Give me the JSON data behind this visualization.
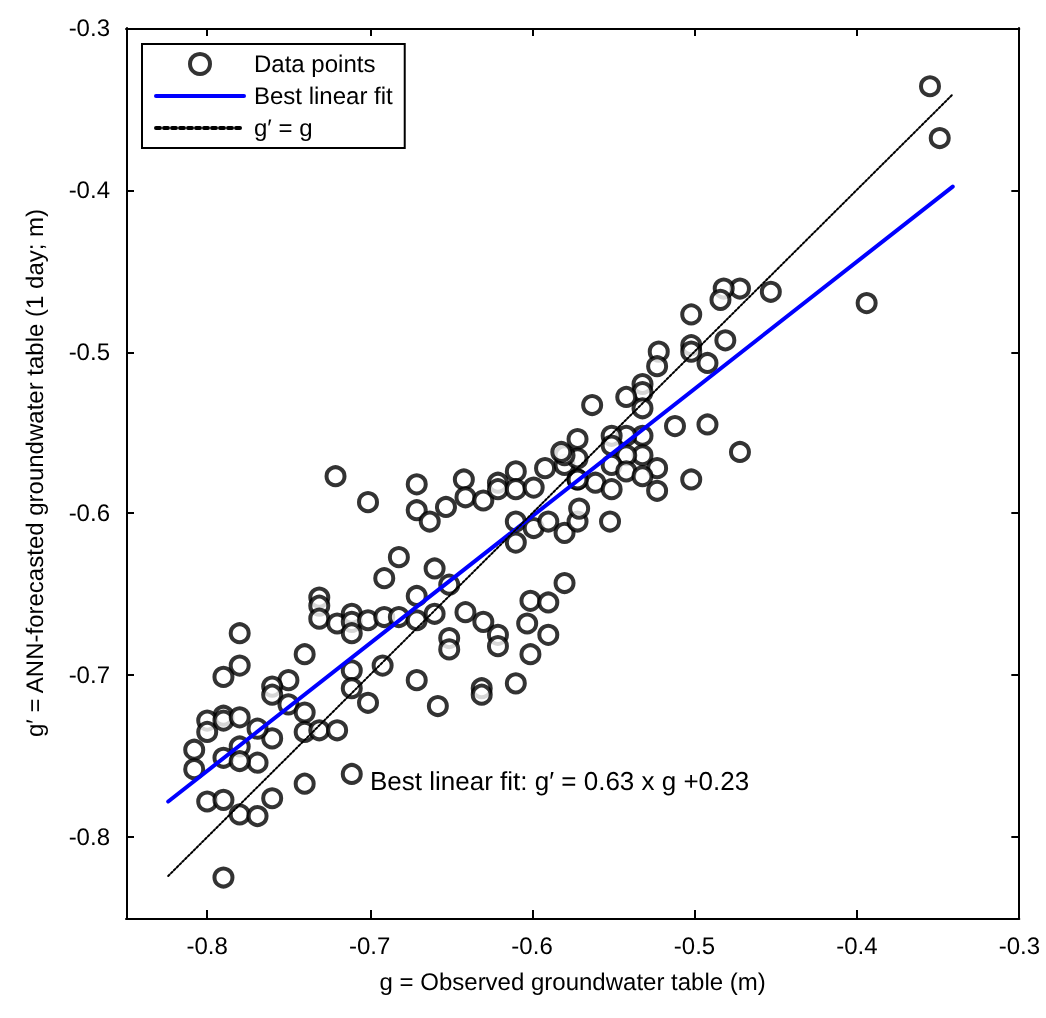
{
  "chart_data": {
    "type": "scatter",
    "xlabel": "g = Observed groundwater table (m)",
    "ylabel": "g′ = ANN-forecasted groundwater table (1 day; m)",
    "annotations": [
      "Best linear fit: g′ = 0.63 x g +0.23"
    ],
    "xlim": [
      -0.85,
      -0.3
    ],
    "xticks": [
      -0.8,
      -0.7,
      -0.6,
      -0.5,
      -0.4,
      -0.3
    ],
    "ylim": [
      -0.85,
      -0.3
    ],
    "yticks": [
      -0.8,
      -0.7,
      -0.6,
      -0.5,
      -0.4,
      -0.3
    ],
    "grid": false,
    "legend": "top left",
    "series": [
      {
        "name": "Data points",
        "type": "scatter",
        "color": "#000000",
        "marker": "circle",
        "x": [
          -0.721,
          -0.701,
          -0.671,
          -0.671,
          -0.653,
          -0.663,
          -0.642,
          -0.641,
          -0.63,
          -0.621,
          -0.621,
          -0.61,
          -0.61,
          -0.599,
          -0.592,
          -0.58,
          -0.572,
          -0.61,
          -0.599,
          -0.59,
          -0.58,
          -0.572,
          -0.61,
          -0.682,
          -0.691,
          -0.66,
          -0.651,
          -0.671,
          -0.731,
          -0.731,
          -0.731,
          -0.72,
          -0.711,
          -0.711,
          -0.711,
          -0.701,
          -0.691,
          -0.682,
          -0.671,
          -0.66,
          -0.641,
          -0.63,
          -0.621,
          -0.621,
          -0.651,
          -0.651,
          -0.601,
          -0.59,
          -0.603,
          -0.59,
          -0.601,
          -0.58,
          -0.61,
          -0.631,
          -0.631,
          -0.671,
          -0.658,
          -0.692,
          -0.711,
          -0.711,
          -0.701,
          -0.74,
          -0.75,
          -0.76,
          -0.76,
          -0.75,
          -0.74,
          -0.74,
          -0.731,
          -0.72,
          -0.76,
          -0.769,
          -0.78,
          -0.79,
          -0.79,
          -0.8,
          -0.8,
          -0.79,
          -0.78,
          -0.808,
          -0.808,
          -0.79,
          -0.78,
          -0.769,
          -0.78,
          -0.78,
          -0.8,
          -0.79,
          -0.78,
          -0.769,
          -0.76,
          -0.74,
          -0.711,
          -0.79,
          -0.355,
          -0.349,
          -0.394,
          -0.453,
          -0.472,
          -0.482,
          -0.484,
          -0.502,
          -0.481,
          -0.502,
          -0.502,
          -0.492,
          -0.522,
          -0.523,
          -0.532,
          -0.532,
          -0.542,
          -0.563,
          -0.532,
          -0.512,
          -0.492,
          -0.472,
          -0.532,
          -0.532,
          -0.523,
          -0.502,
          -0.542,
          -0.551,
          -0.551,
          -0.572,
          -0.572,
          -0.58,
          -0.542,
          -0.551,
          -0.542,
          -0.532,
          -0.523,
          -0.561,
          -0.551,
          -0.572,
          -0.552,
          -0.571,
          -0.582
        ],
        "values": [
          -0.577,
          -0.593,
          -0.582,
          -0.598,
          -0.596,
          -0.605,
          -0.579,
          -0.59,
          -0.592,
          -0.581,
          -0.585,
          -0.574,
          -0.585,
          -0.584,
          -0.572,
          -0.57,
          -0.579,
          -0.605,
          -0.609,
          -0.605,
          -0.612,
          -0.605,
          -0.618,
          -0.627,
          -0.64,
          -0.634,
          -0.644,
          -0.651,
          -0.652,
          -0.657,
          -0.665,
          -0.668,
          -0.662,
          -0.667,
          -0.674,
          -0.666,
          -0.664,
          -0.664,
          -0.666,
          -0.662,
          -0.661,
          -0.667,
          -0.675,
          -0.682,
          -0.677,
          -0.684,
          -0.654,
          -0.655,
          -0.668,
          -0.675,
          -0.687,
          -0.643,
          -0.705,
          -0.708,
          -0.712,
          -0.703,
          -0.719,
          -0.694,
          -0.697,
          -0.708,
          -0.717,
          -0.687,
          -0.703,
          -0.707,
          -0.712,
          -0.718,
          -0.723,
          -0.735,
          -0.734,
          -0.734,
          -0.739,
          -0.733,
          -0.694,
          -0.701,
          -0.725,
          -0.728,
          -0.735,
          -0.728,
          -0.726,
          -0.746,
          -0.758,
          -0.751,
          -0.744,
          -0.754,
          -0.753,
          -0.674,
          -0.778,
          -0.777,
          -0.786,
          -0.787,
          -0.776,
          -0.767,
          -0.761,
          -0.825,
          -0.336,
          -0.368,
          -0.47,
          -0.463,
          -0.461,
          -0.461,
          -0.468,
          -0.477,
          -0.493,
          -0.496,
          -0.5,
          -0.507,
          -0.5,
          -0.509,
          -0.52,
          -0.525,
          -0.528,
          -0.533,
          -0.535,
          -0.546,
          -0.545,
          -0.562,
          -0.552,
          -0.564,
          -0.572,
          -0.579,
          -0.552,
          -0.552,
          -0.558,
          -0.554,
          -0.566,
          -0.564,
          -0.564,
          -0.57,
          -0.574,
          -0.577,
          -0.586,
          -0.581,
          -0.585,
          -0.579,
          -0.605,
          -0.597,
          -0.562
        ]
      },
      {
        "name": "Best linear fit",
        "type": "line",
        "color": "#0000ff",
        "marker": "none",
        "line_style": "solid",
        "x": [
          -0.824,
          -0.341
        ],
        "values": [
          -0.778,
          -0.398
        ]
      },
      {
        "name": "g′ = g",
        "type": "line",
        "color": "#000000",
        "marker": "none",
        "line_style": "dotted",
        "x": [
          -0.824,
          -0.341
        ],
        "values": [
          -0.824,
          -0.341
        ]
      }
    ]
  }
}
